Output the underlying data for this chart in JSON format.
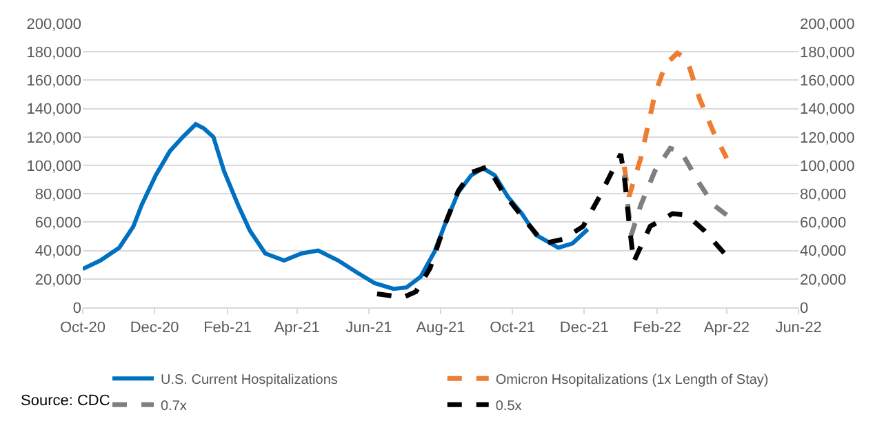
{
  "chart_data": {
    "type": "line",
    "series": [
      {
        "name": "U.S. Current Hospitalizations",
        "color": "#0070c0",
        "line_style": "solid",
        "x": [
          "2020-10-01",
          "2020-10-16",
          "2020-11-01",
          "2020-11-13",
          "2020-11-20",
          "2020-12-02",
          "2020-12-14",
          "2020-12-25",
          "2021-01-05",
          "2021-01-12",
          "2021-01-20",
          "2021-01-29",
          "2021-02-10",
          "2021-02-20",
          "2021-03-05",
          "2021-03-21",
          "2021-04-05",
          "2021-04-19",
          "2021-05-06",
          "2021-05-22",
          "2021-06-06",
          "2021-06-22",
          "2021-07-03",
          "2021-07-15",
          "2021-07-27",
          "2021-08-04",
          "2021-08-16",
          "2021-08-27",
          "2021-09-06",
          "2021-09-16",
          "2021-09-27",
          "2021-10-09",
          "2021-10-21",
          "2021-11-09",
          "2021-11-21",
          "2021-12-04"
        ],
        "values": [
          27000,
          33000,
          42000,
          57000,
          72000,
          93000,
          110000,
          120000,
          129000,
          126000,
          120000,
          96000,
          72000,
          54000,
          38000,
          33000,
          38000,
          40000,
          33000,
          24500,
          17000,
          13000,
          14000,
          21500,
          39500,
          57000,
          81000,
          93000,
          98000,
          93000,
          78000,
          66000,
          51000,
          42000,
          45000,
          55000
        ]
      },
      {
        "name": "Omicron Hsopitalizations (1x Length of Stay)",
        "color": "#ed7d31",
        "line_style": "dashed",
        "x": [
          "2022-01-04",
          "2022-01-08",
          "2022-01-18",
          "2022-01-30",
          "2022-02-08",
          "2022-02-18",
          "2022-02-26",
          "2022-03-09",
          "2022-03-21",
          "2022-04-01"
        ],
        "values": [
          99000,
          78000,
          105000,
          150000,
          171000,
          179000,
          175000,
          147000,
          123000,
          105000
        ]
      },
      {
        "name": "0.7x",
        "color": "#7f7f7f",
        "line_style": "dashed",
        "x": [
          "2022-01-04",
          "2022-01-10",
          "2022-01-18",
          "2022-01-30",
          "2022-02-12",
          "2022-02-21",
          "2022-03-09",
          "2022-03-21",
          "2022-04-01"
        ],
        "values": [
          93000,
          51000,
          72000,
          96000,
          112000,
          110000,
          87000,
          72000,
          65000
        ]
      },
      {
        "name": "0.5x",
        "color": "#000000",
        "line_style": "dashed",
        "x": [
          "2021-06-08",
          "2021-06-30",
          "2021-07-11",
          "2021-07-23",
          "2021-08-04",
          "2021-08-16",
          "2021-08-27",
          "2021-09-10",
          "2021-09-23",
          "2021-10-13",
          "2021-10-28",
          "2021-11-13",
          "2021-11-30",
          "2021-12-14",
          "2022-01-01",
          "2022-01-04",
          "2022-01-08",
          "2022-01-12",
          "2022-01-26",
          "2022-02-14",
          "2022-02-26",
          "2022-03-13",
          "2022-03-30"
        ],
        "values": [
          9500,
          7000,
          11000,
          27500,
          57000,
          82000,
          95000,
          99000,
          81000,
          60000,
          45000,
          48000,
          57000,
          78000,
          108000,
          93000,
          60000,
          32000,
          57000,
          66000,
          65000,
          54000,
          38000
        ]
      }
    ],
    "xlim": [
      "2020-10-01",
      "2022-06-01"
    ],
    "xticks": [
      {
        "value": "2020-10-01",
        "label": "Oct-20"
      },
      {
        "value": "2020-12-01",
        "label": "Dec-20"
      },
      {
        "value": "2021-02-01",
        "label": "Feb-21"
      },
      {
        "value": "2021-04-01",
        "label": "Apr-21"
      },
      {
        "value": "2021-06-01",
        "label": "Jun-21"
      },
      {
        "value": "2021-08-01",
        "label": "Aug-21"
      },
      {
        "value": "2021-10-01",
        "label": "Oct-21"
      },
      {
        "value": "2021-12-01",
        "label": "Dec-21"
      },
      {
        "value": "2022-02-01",
        "label": "Feb-22"
      },
      {
        "value": "2022-04-01",
        "label": "Apr-22"
      },
      {
        "value": "2022-06-01",
        "label": "Jun-22"
      }
    ],
    "ylim": [
      0,
      200000
    ],
    "yticks": [
      {
        "value": 0,
        "label": "0"
      },
      {
        "value": 20000,
        "label": "20,000"
      },
      {
        "value": 40000,
        "label": "40,000"
      },
      {
        "value": 60000,
        "label": "60,000"
      },
      {
        "value": 80000,
        "label": "80,000"
      },
      {
        "value": 100000,
        "label": "100,000"
      },
      {
        "value": 120000,
        "label": "120,000"
      },
      {
        "value": 140000,
        "label": "140,000"
      },
      {
        "value": 160000,
        "label": "160,000"
      },
      {
        "value": 180000,
        "label": "180,000"
      },
      {
        "value": 200000,
        "label": "200,000"
      }
    ],
    "y2lim": [
      0,
      200000
    ],
    "y2ticks": [
      {
        "value": 0,
        "label": "0"
      },
      {
        "value": 20000,
        "label": "20,000"
      },
      {
        "value": 40000,
        "label": "40,000"
      },
      {
        "value": 60000,
        "label": "60,000"
      },
      {
        "value": 80000,
        "label": "80,000"
      },
      {
        "value": 100000,
        "label": "100,000"
      },
      {
        "value": 120000,
        "label": "120,000"
      },
      {
        "value": 140000,
        "label": "140,000"
      },
      {
        "value": 160000,
        "label": "160,000"
      },
      {
        "value": 180000,
        "label": "180,000"
      },
      {
        "value": 200000,
        "label": "200,000"
      }
    ],
    "grid": "y",
    "legend": "bottom",
    "marker": "none",
    "annotations": [
      "Source: CDC"
    ]
  }
}
